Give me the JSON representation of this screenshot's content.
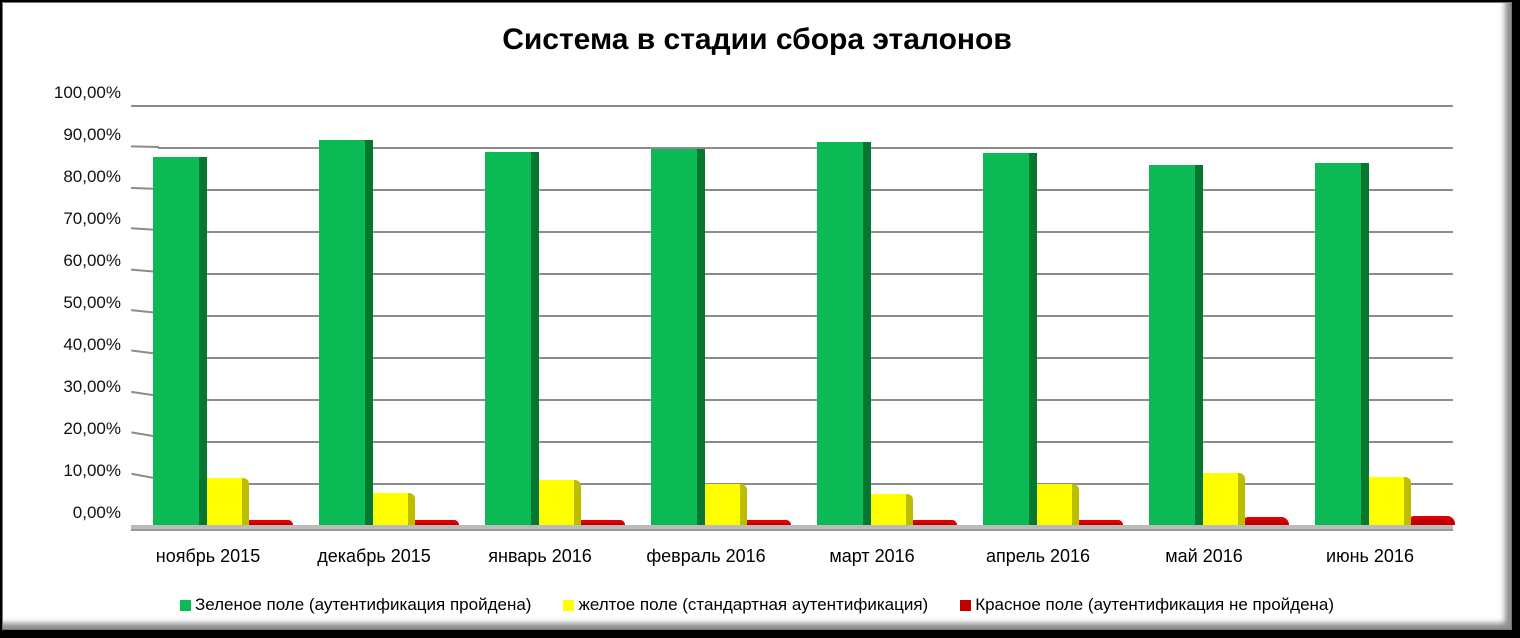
{
  "chart_data": {
    "type": "bar",
    "title": "Система в стадии сбора эталонов",
    "xlabel": "",
    "ylabel": "",
    "ylim": [
      0,
      100
    ],
    "yticks": [
      "0,00%",
      "10,00%",
      "20,00%",
      "30,00%",
      "40,00%",
      "50,00%",
      "60,00%",
      "70,00%",
      "80,00%",
      "90,00%",
      "100,00%"
    ],
    "grid": true,
    "legend_position": "bottom",
    "style": "3d-clustered-column",
    "categories": [
      "ноябрь 2015",
      "декабрь 2015",
      "январь 2016",
      "февраль 2016",
      "март 2016",
      "апрель 2016",
      "май 2016",
      "июнь 2016"
    ],
    "series": [
      {
        "name": "Зеленое поле (аутентификация пройдена)",
        "color": "#0bb955",
        "values": [
          87.6,
          91.6,
          88.7,
          89.6,
          91.1,
          88.6,
          85.7,
          86.3
        ]
      },
      {
        "name": "желтое поле (стандартная аутентификация)",
        "color": "#ffff00",
        "values": [
          11.3,
          7.6,
          10.6,
          9.8,
          7.4,
          9.8,
          12.3,
          11.4
        ]
      },
      {
        "name": "Красное поле (аутентификация не пройдена)",
        "color": "#c00000",
        "values": [
          0.5,
          0.3,
          0.3,
          0.3,
          1.2,
          1.1,
          1.9,
          2.1
        ]
      }
    ]
  }
}
